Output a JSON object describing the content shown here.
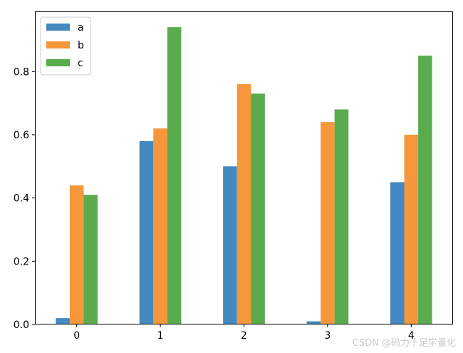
{
  "chart_data": {
    "type": "bar",
    "categories": [
      "0",
      "1",
      "2",
      "3",
      "4"
    ],
    "series": [
      {
        "name": "a",
        "color": "#4489bf",
        "values": [
          0.02,
          0.58,
          0.5,
          0.01,
          0.45
        ]
      },
      {
        "name": "b",
        "color": "#f5973a",
        "values": [
          0.44,
          0.62,
          0.76,
          0.64,
          0.6
        ]
      },
      {
        "name": "c",
        "color": "#5aab4d",
        "values": [
          0.41,
          0.94,
          0.73,
          0.68,
          0.85
        ]
      }
    ],
    "yticks": [
      0.0,
      0.2,
      0.4,
      0.6,
      0.8
    ],
    "ytick_labels": [
      "0.0",
      "0.2",
      "0.4",
      "0.6",
      "0.8"
    ],
    "ylim": [
      0,
      0.99
    ],
    "title": "",
    "xlabel": "",
    "ylabel": "",
    "legend_position": "top-left",
    "grid": false
  },
  "watermark": "CSDN @码力十足学量化"
}
